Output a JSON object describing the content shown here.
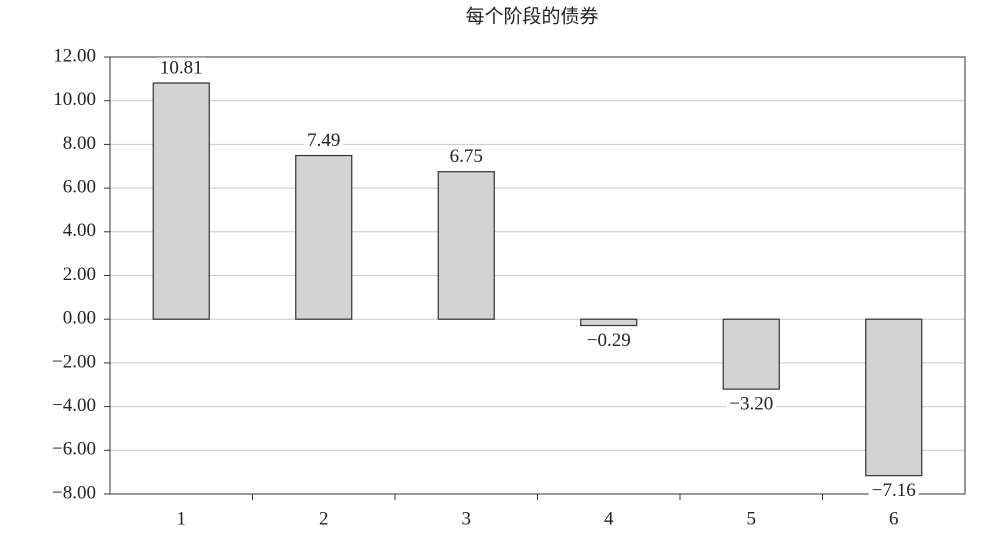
{
  "chart_data": {
    "type": "bar",
    "title": "每个阶段的债券",
    "categories": [
      "1",
      "2",
      "3",
      "4",
      "5",
      "6"
    ],
    "values": [
      10.81,
      7.49,
      6.75,
      -0.29,
      -3.2,
      -7.16
    ],
    "value_labels": [
      "10.81",
      "7.49",
      "6.75",
      "−0.29",
      "−3.20",
      "−7.16"
    ],
    "color": "#d3d3d3",
    "ylim": [
      -8,
      12
    ],
    "yticks": [
      {
        "value": -8,
        "label": "−8.00"
      },
      {
        "value": -6,
        "label": "−6.00"
      },
      {
        "value": -4,
        "label": "−4.00"
      },
      {
        "value": -2,
        "label": "−2.00"
      },
      {
        "value": 0,
        "label": "0.00"
      },
      {
        "value": 2,
        "label": "2.00"
      },
      {
        "value": 4,
        "label": "4.00"
      },
      {
        "value": 6,
        "label": "6.00"
      },
      {
        "value": 8,
        "label": "8.00"
      },
      {
        "value": 10,
        "label": "10.00"
      },
      {
        "value": 12,
        "label": "12.00"
      }
    ],
    "grid": true
  }
}
